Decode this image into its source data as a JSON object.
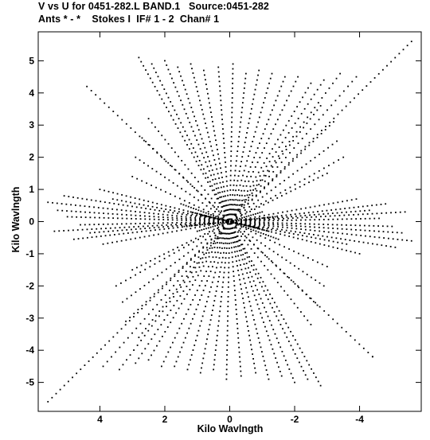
{
  "header": {
    "line1": "V vs U for 0451-282.L BAND.1   Source:0451-282",
    "line2": "Ants * - *    Stokes I  IF# 1 - 2  Chan# 1"
  },
  "chart_data": {
    "type": "scatter",
    "title": "V vs U for 0451-282.L BAND.1   Source:0451-282",
    "subtitle": "Ants * - *    Stokes I  IF# 1 - 2  Chan# 1",
    "xlabel": "Kilo Wavlngth",
    "ylabel": "Kilo Wavlngth",
    "x_reversed": true,
    "xlim": [
      5.9,
      -5.9
    ],
    "ylim": [
      -5.9,
      5.9
    ],
    "xticks": [
      4,
      2,
      0,
      -2,
      -4
    ],
    "xtick_labels": [
      "4",
      "2",
      "0",
      "-2",
      "-4"
    ],
    "yticks": [
      5,
      4,
      3,
      2,
      1,
      0,
      -1,
      -2,
      -3,
      -4,
      -5
    ],
    "ytick_labels": [
      "5",
      "4",
      "3",
      "2",
      "1",
      "0",
      "-1",
      "-2",
      "-3",
      "-4",
      "-5"
    ],
    "grid": false,
    "marker_color": "#000000",
    "tracks": [
      {
        "start": [
          5.6,
          -5.6
        ],
        "end": [
          -5.6,
          5.6
        ],
        "n": 90
      },
      {
        "start": [
          2.8,
          5.1
        ],
        "end": [
          -2.8,
          -5.1
        ],
        "n": 80
      },
      {
        "start": [
          2.4,
          4.9
        ],
        "end": [
          -2.4,
          -4.9
        ],
        "n": 76
      },
      {
        "start": [
          2.0,
          5.0
        ],
        "end": [
          -2.0,
          -5.0
        ],
        "n": 74
      },
      {
        "start": [
          1.6,
          4.8
        ],
        "end": [
          -1.6,
          -4.8
        ],
        "n": 70
      },
      {
        "start": [
          1.2,
          4.9
        ],
        "end": [
          -1.2,
          -4.9
        ],
        "n": 70
      },
      {
        "start": [
          0.8,
          4.7
        ],
        "end": [
          -0.8,
          -4.7
        ],
        "n": 66
      },
      {
        "start": [
          0.35,
          4.8
        ],
        "end": [
          -0.35,
          -4.8
        ],
        "n": 66
      },
      {
        "start": [
          -0.1,
          4.9
        ],
        "end": [
          0.1,
          -4.9
        ],
        "n": 66
      },
      {
        "start": [
          -0.5,
          4.6
        ],
        "end": [
          0.5,
          -4.6
        ],
        "n": 62
      },
      {
        "start": [
          -0.9,
          4.7
        ],
        "end": [
          0.9,
          -4.7
        ],
        "n": 64
      },
      {
        "start": [
          -1.3,
          4.6
        ],
        "end": [
          1.3,
          -4.6
        ],
        "n": 62
      },
      {
        "start": [
          -1.7,
          4.5
        ],
        "end": [
          1.7,
          -4.5
        ],
        "n": 62
      },
      {
        "start": [
          -2.1,
          4.5
        ],
        "end": [
          2.1,
          -4.5
        ],
        "n": 62
      },
      {
        "start": [
          -2.5,
          4.3
        ],
        "end": [
          2.5,
          -4.3
        ],
        "n": 60
      },
      {
        "start": [
          -2.9,
          4.4
        ],
        "end": [
          2.9,
          -4.4
        ],
        "n": 60
      },
      {
        "start": [
          -3.4,
          4.6
        ],
        "end": [
          3.4,
          -4.6
        ],
        "n": 62
      },
      {
        "start": [
          -3.9,
          4.5
        ],
        "end": [
          3.9,
          -4.5
        ],
        "n": 62
      },
      {
        "start": [
          -2.8,
          3.6
        ],
        "end": [
          2.8,
          -3.6
        ],
        "n": 54
      },
      {
        "start": [
          -3.2,
          3.1
        ],
        "end": [
          3.2,
          -3.1
        ],
        "n": 52
      },
      {
        "start": [
          -3.3,
          2.5
        ],
        "end": [
          3.3,
          -2.5
        ],
        "n": 50
      },
      {
        "start": [
          -3.5,
          2.0
        ],
        "end": [
          3.5,
          -2.0
        ],
        "n": 48
      },
      {
        "start": [
          -3.0,
          1.5
        ],
        "end": [
          3.0,
          -1.5
        ],
        "n": 44
      },
      {
        "start": [
          2.5,
          3.2
        ],
        "end": [
          -2.5,
          -3.2
        ],
        "n": 50
      },
      {
        "start": [
          2.7,
          2.6
        ],
        "end": [
          -2.7,
          -2.6
        ],
        "n": 48
      },
      {
        "start": [
          2.9,
          2.0
        ],
        "end": [
          -2.9,
          -2.0
        ],
        "n": 46
      },
      {
        "start": [
          3.0,
          1.4
        ],
        "end": [
          -3.0,
          -1.4
        ],
        "n": 42
      },
      {
        "start": [
          5.6,
          0.6
        ],
        "end": [
          -5.6,
          -0.6
        ],
        "n": 80
      },
      {
        "start": [
          5.3,
          0.35
        ],
        "end": [
          -5.3,
          -0.35
        ],
        "n": 76
      },
      {
        "start": [
          5.0,
          0.15
        ],
        "end": [
          -5.0,
          -0.15
        ],
        "n": 72
      },
      {
        "start": [
          4.6,
          -0.1
        ],
        "end": [
          -4.6,
          0.1
        ],
        "n": 66
      },
      {
        "start": [
          4.3,
          -0.35
        ],
        "end": [
          -4.3,
          0.35
        ],
        "n": 62
      },
      {
        "start": [
          5.1,
          0.8
        ],
        "end": [
          -5.1,
          -0.8
        ],
        "n": 74
      },
      {
        "start": [
          4.0,
          1.0
        ],
        "end": [
          -4.0,
          -1.0
        ],
        "n": 60
      },
      {
        "start": [
          5.4,
          -0.3
        ],
        "end": [
          -5.4,
          0.3
        ],
        "n": 76
      },
      {
        "start": [
          4.8,
          -0.55
        ],
        "end": [
          -4.8,
          0.55
        ],
        "n": 70
      },
      {
        "start": [
          3.6,
          0.7
        ],
        "end": [
          -3.6,
          -0.7
        ],
        "n": 54
      },
      {
        "start": [
          3.9,
          -0.7
        ],
        "end": [
          -3.9,
          0.7
        ],
        "n": 56
      },
      {
        "start": [
          1.5,
          0.55
        ],
        "end": [
          -1.5,
          -0.55
        ],
        "n": 40
      },
      {
        "start": [
          1.2,
          0.3
        ],
        "end": [
          -1.2,
          -0.3
        ],
        "n": 36
      },
      {
        "start": [
          1.4,
          -0.15
        ],
        "end": [
          -1.4,
          0.15
        ],
        "n": 36
      },
      {
        "start": [
          0.9,
          0.2
        ],
        "end": [
          -0.9,
          -0.2
        ],
        "n": 28
      },
      {
        "start": [
          1.0,
          -0.3
        ],
        "end": [
          -1.0,
          0.3
        ],
        "n": 30
      },
      {
        "start": [
          4.4,
          4.2
        ],
        "end": [
          -4.4,
          -4.2
        ],
        "n": 66
      },
      {
        "start": [
          -4.4,
          -4.2
        ],
        "end": [
          4.4,
          4.2
        ],
        "n": 1
      }
    ]
  }
}
